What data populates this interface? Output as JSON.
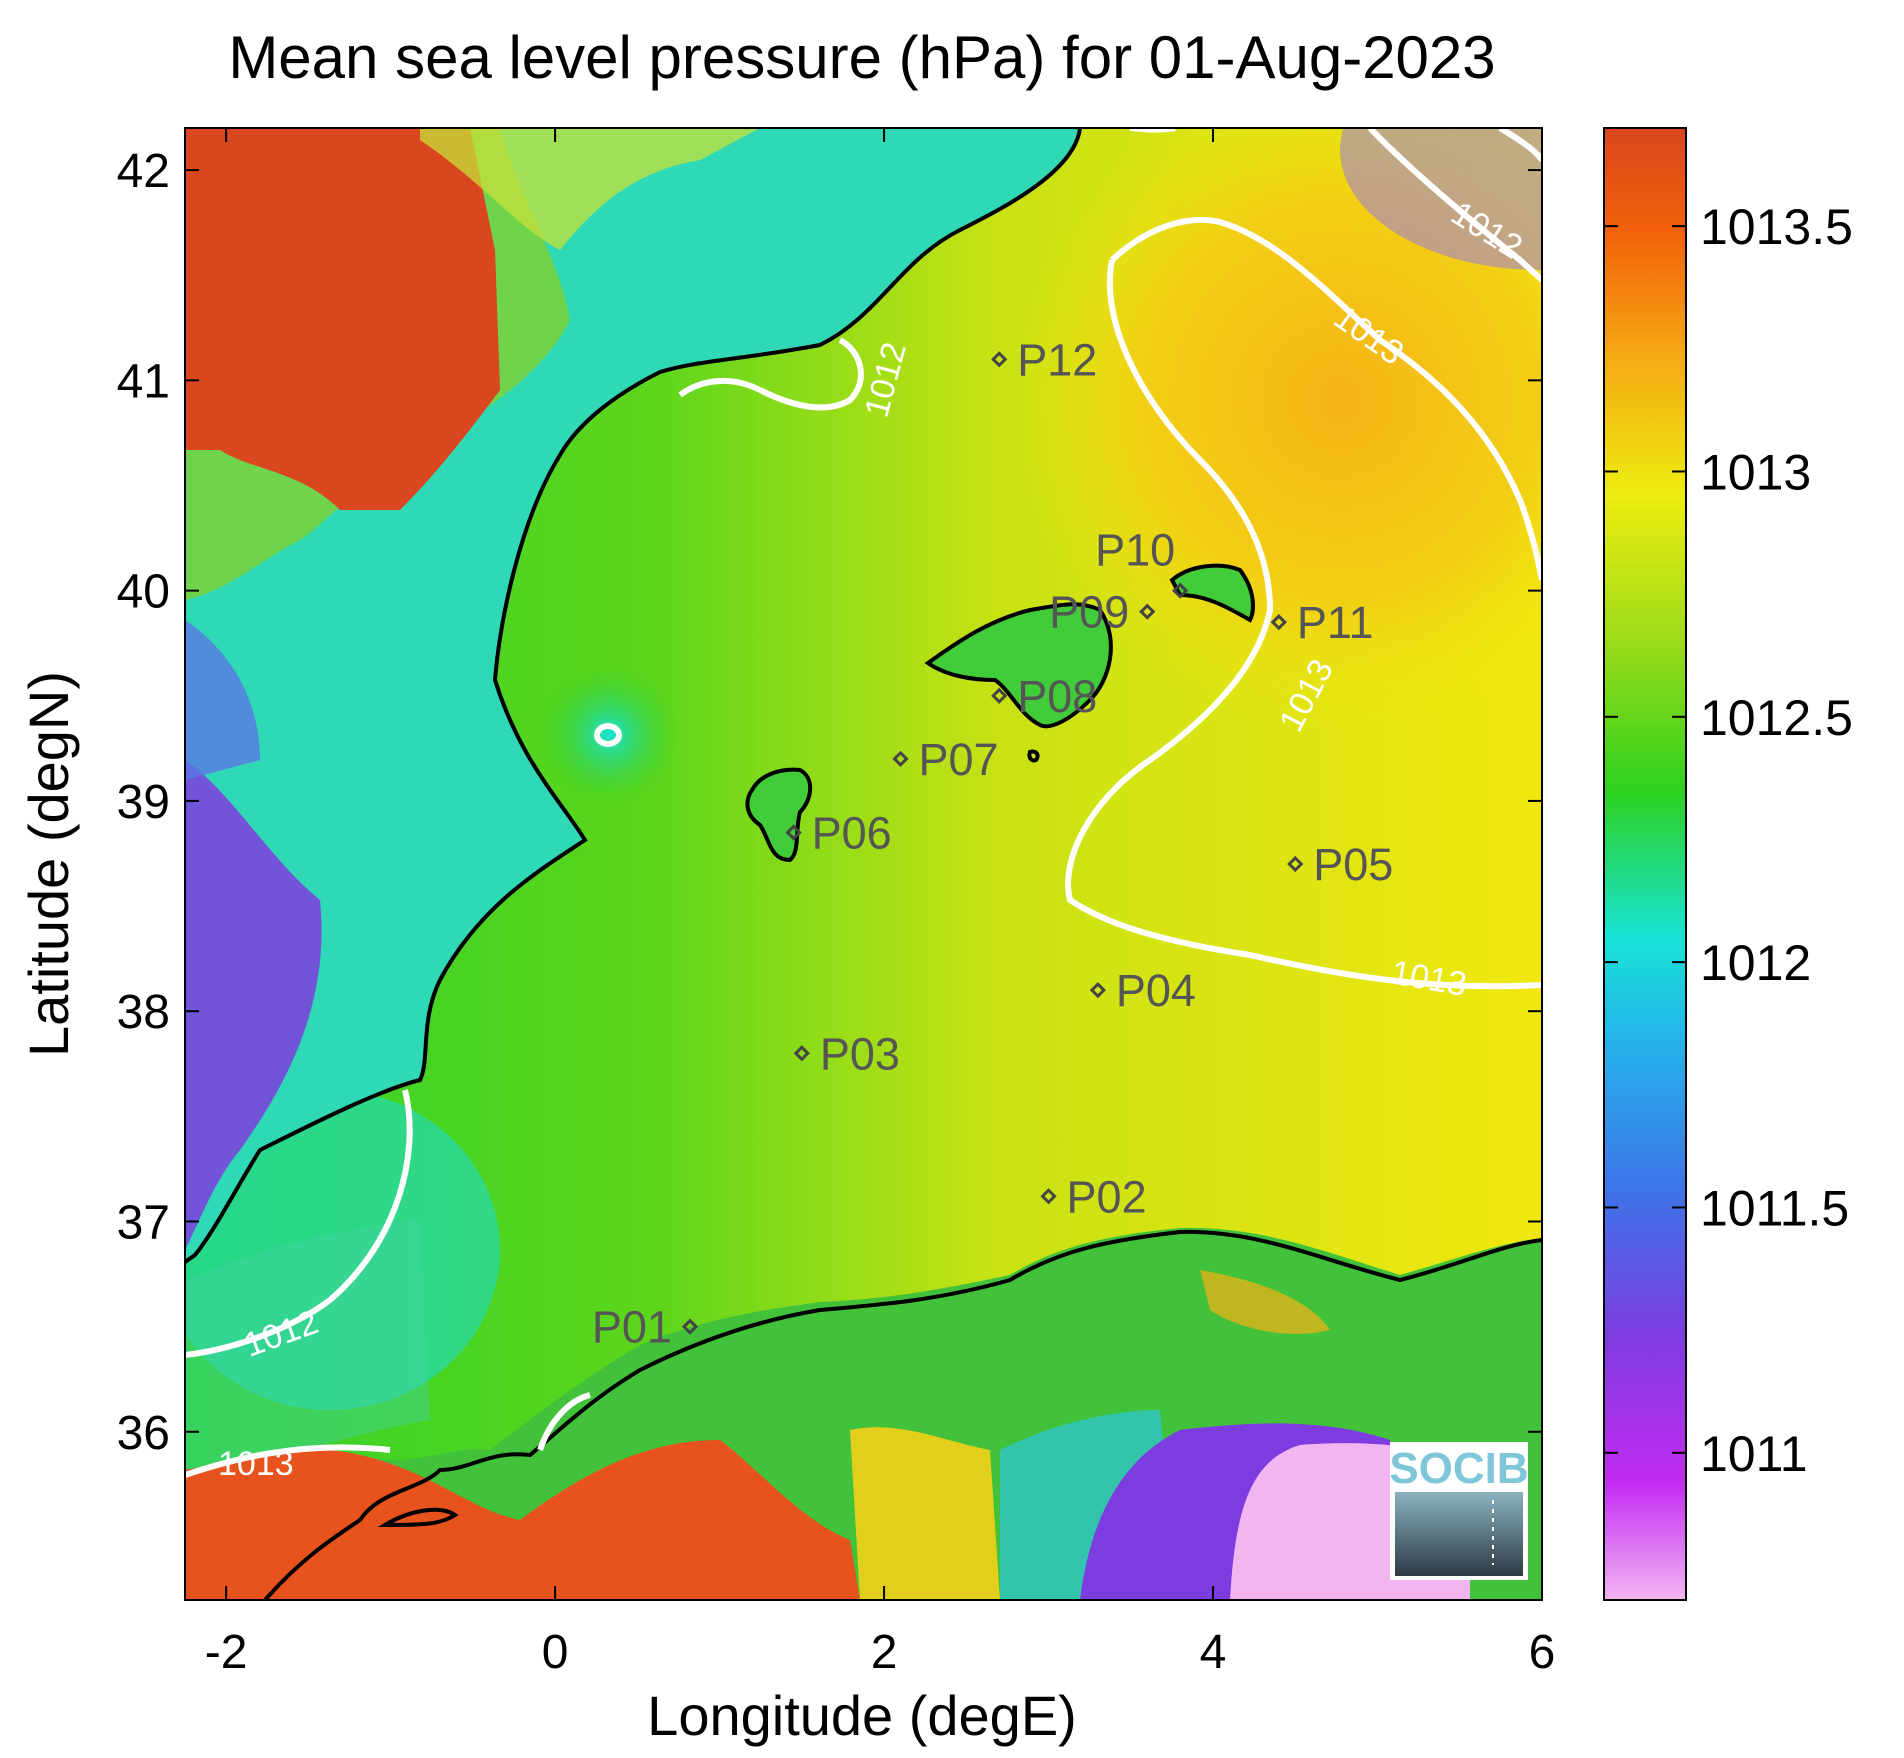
{
  "title": "Mean sea level pressure (hPa) for 01-Aug-2023",
  "x_axis": {
    "label": "Longitude (degE)",
    "range": [
      -2.25,
      6.0
    ],
    "ticks": [
      -2,
      0,
      2,
      4,
      6
    ],
    "tick_labels": [
      "-2",
      "0",
      "2",
      "4",
      "6"
    ]
  },
  "y_axis": {
    "label": "Latitude (degN)",
    "range": [
      35.2,
      42.2
    ],
    "ticks": [
      36,
      37,
      38,
      39,
      40,
      41,
      42
    ],
    "tick_labels": [
      "36",
      "37",
      "38",
      "39",
      "40",
      "41",
      "42"
    ]
  },
  "colorbar": {
    "range": [
      1010.7,
      1013.7
    ],
    "ticks": [
      1011,
      1011.5,
      1012,
      1012.5,
      1013,
      1013.5
    ],
    "tick_labels": [
      "1011",
      "1011.5",
      "1012",
      "1012.5",
      "1013",
      "1013.5"
    ],
    "colors": [
      "#f2b5f2",
      "#c22cf2",
      "#7d3cde",
      "#3d75e8",
      "#19e3d6",
      "#2ed11e",
      "#9bdb1a",
      "#eded10",
      "#f5a514",
      "#f2610a",
      "#d9461f"
    ]
  },
  "stations": [
    {
      "name": "P01",
      "lon": 0.82,
      "lat": 36.5
    },
    {
      "name": "P02",
      "lon": 3.0,
      "lat": 37.12
    },
    {
      "name": "P03",
      "lon": 1.5,
      "lat": 37.8
    },
    {
      "name": "P04",
      "lon": 3.3,
      "lat": 38.1
    },
    {
      "name": "P05",
      "lon": 4.5,
      "lat": 38.7
    },
    {
      "name": "P06",
      "lon": 1.45,
      "lat": 38.85
    },
    {
      "name": "P07",
      "lon": 2.1,
      "lat": 39.2
    },
    {
      "name": "P08",
      "lon": 2.7,
      "lat": 39.5
    },
    {
      "name": "P09",
      "lon": 3.6,
      "lat": 39.9
    },
    {
      "name": "P10",
      "lon": 3.8,
      "lat": 40.0
    },
    {
      "name": "P11",
      "lon": 4.4,
      "lat": 39.85
    },
    {
      "name": "P12",
      "lon": 2.7,
      "lat": 41.1
    }
  ],
  "contour_labels": [
    "1012",
    "1013",
    "1013",
    "1012",
    "1013",
    "1013",
    "1012",
    "1013"
  ],
  "logo": {
    "text": "SOCIB"
  }
}
